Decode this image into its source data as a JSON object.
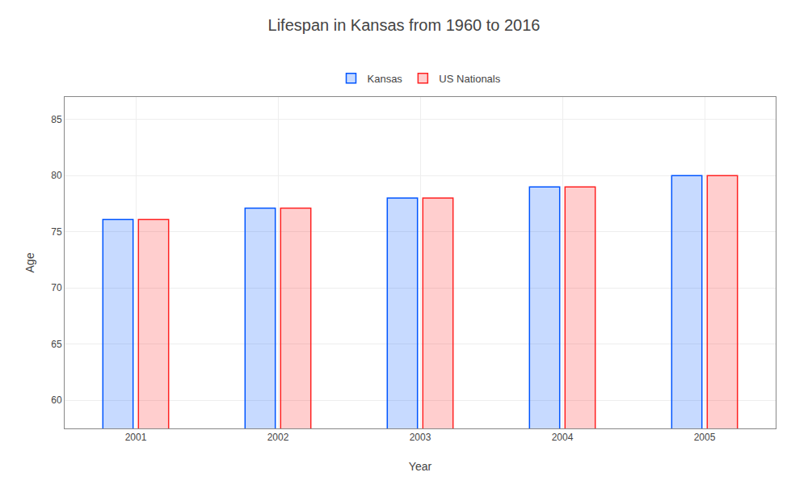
{
  "chart_data": {
    "type": "bar",
    "title": "Lifespan in Kansas from 1960 to 2016",
    "x_label": "Year",
    "y_label": "Age",
    "categories": [
      "2001",
      "2002",
      "2003",
      "2004",
      "2005"
    ],
    "series": [
      {
        "name": "Kansas",
        "color": "#0055ff",
        "values": [
          76.1,
          77.1,
          78.0,
          79.0,
          80.0
        ]
      },
      {
        "name": "US Nationals",
        "color": "#ff2222",
        "values": [
          76.1,
          77.1,
          78.0,
          79.0,
          80.0
        ]
      }
    ],
    "ylim": [
      57.5,
      87
    ],
    "yticks": [
      60,
      65,
      70,
      75,
      80,
      85
    ],
    "grid": true,
    "legend": "top"
  }
}
